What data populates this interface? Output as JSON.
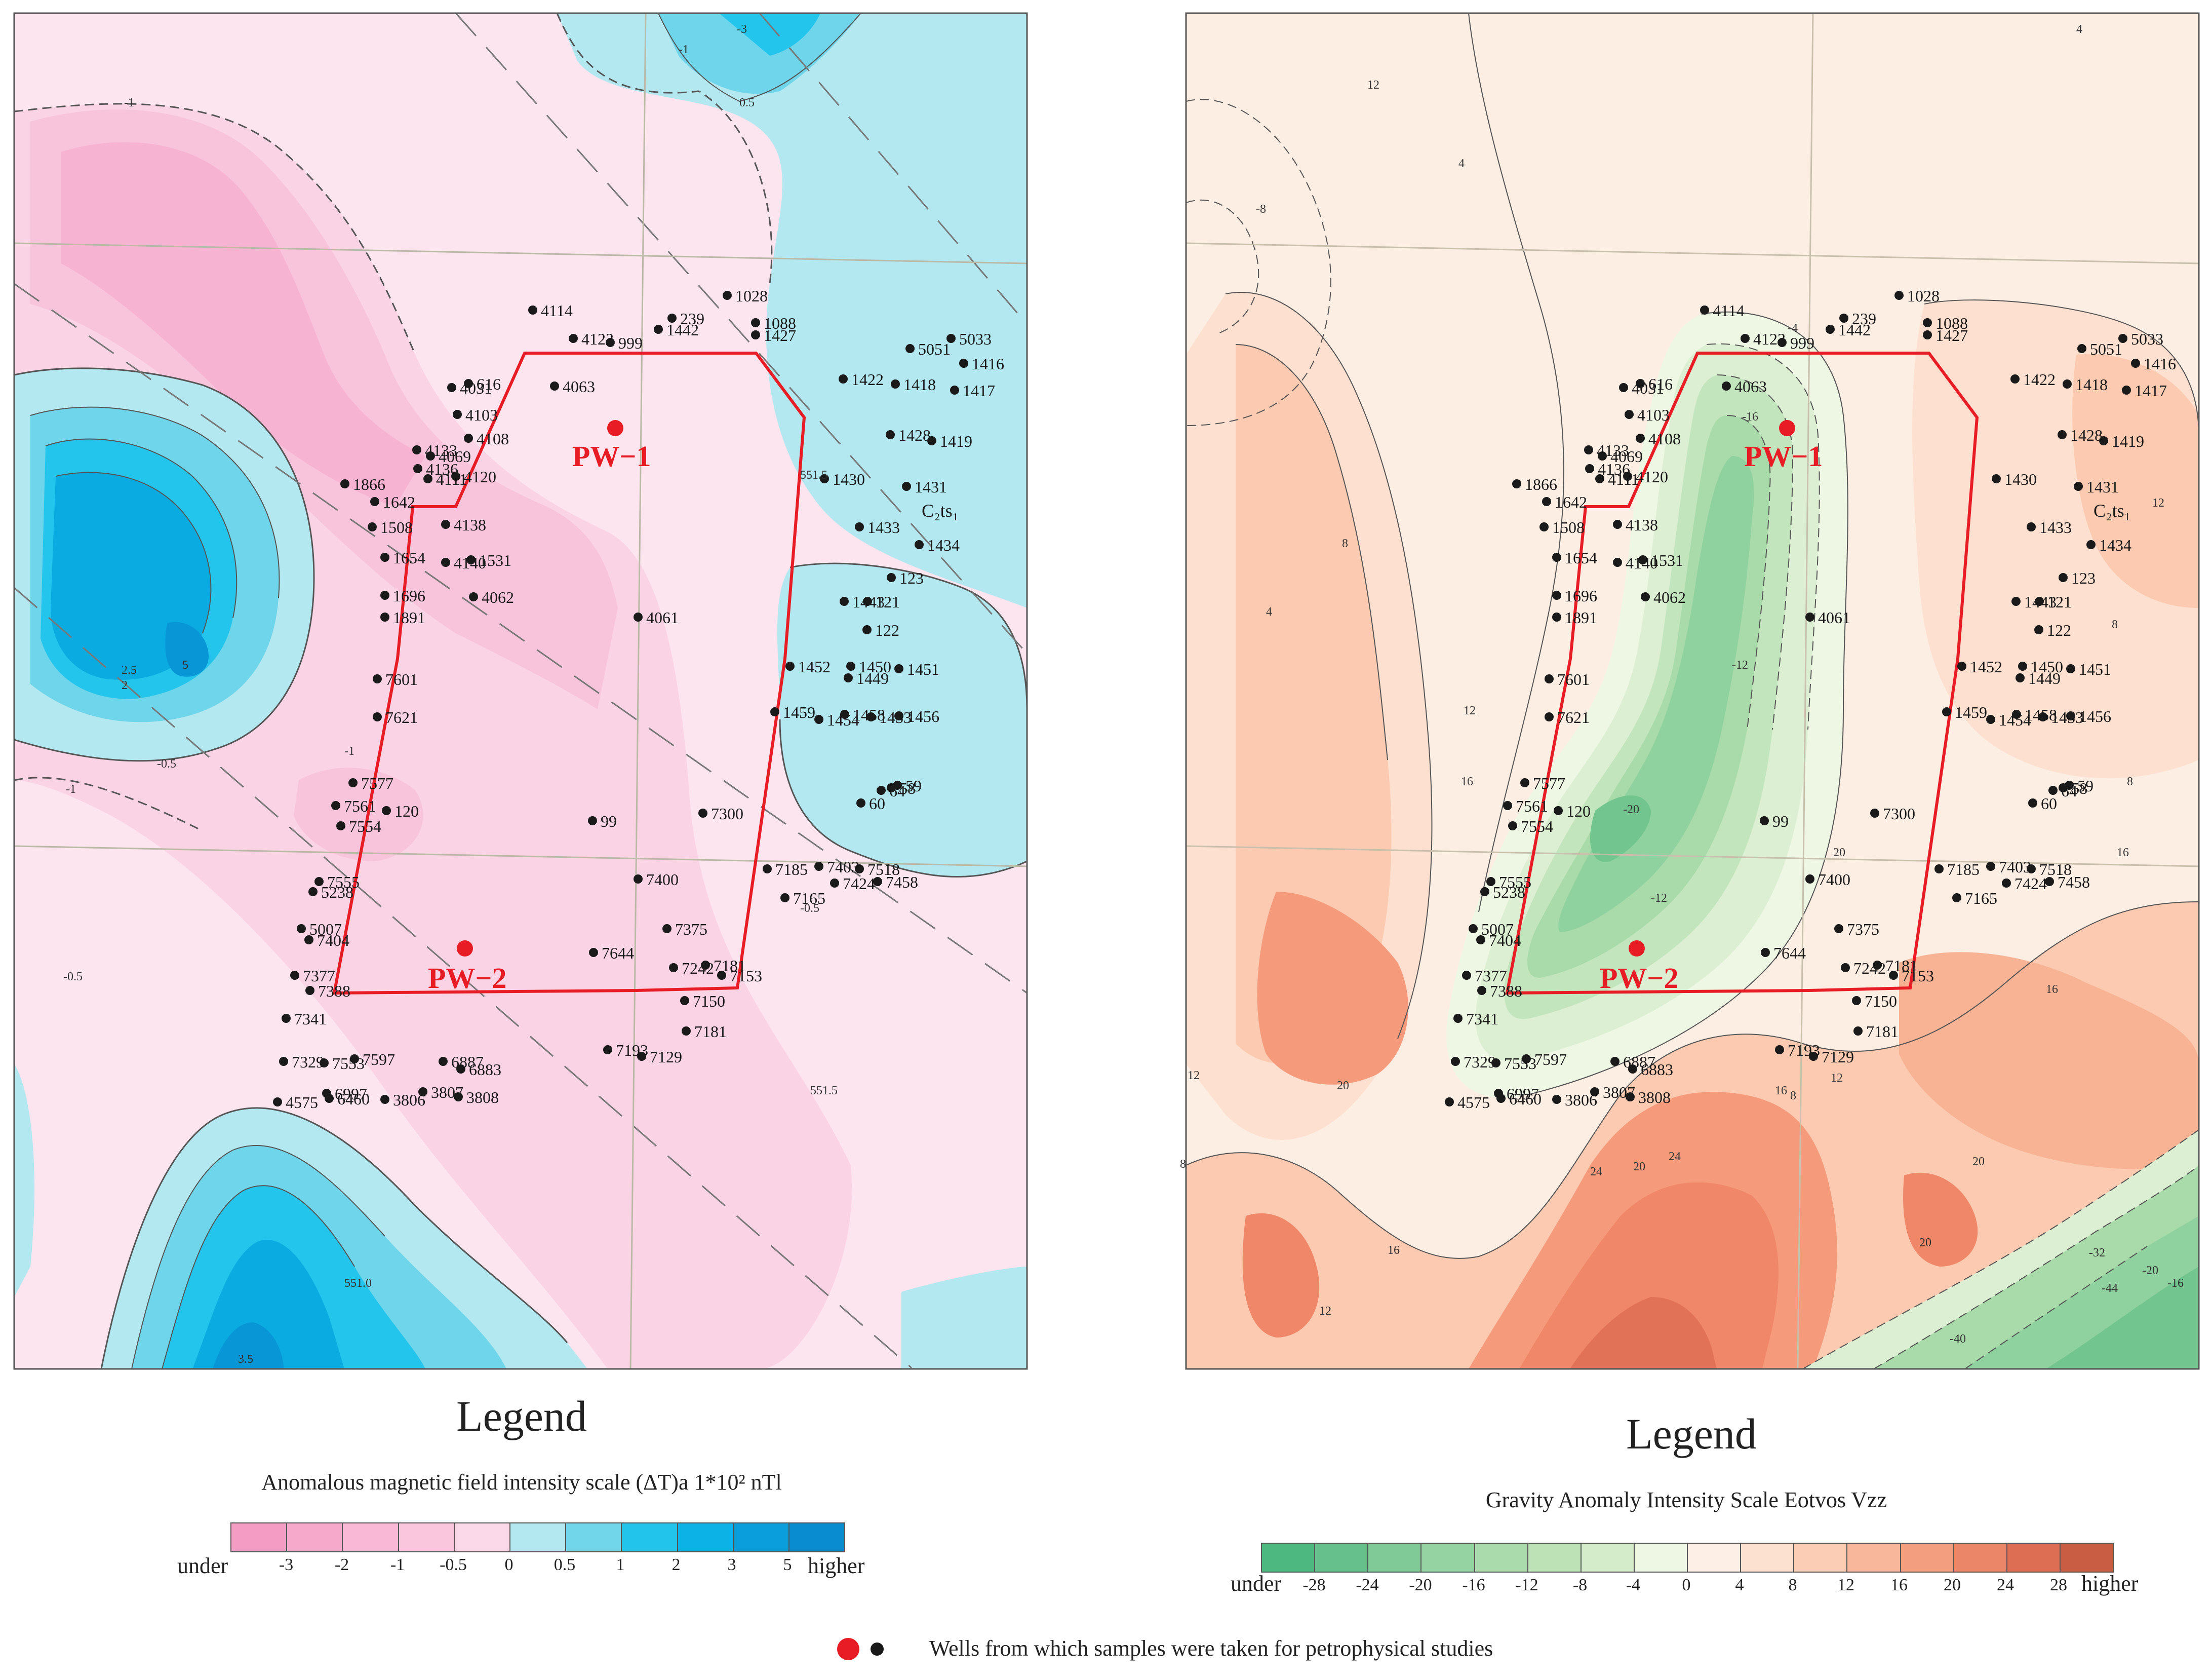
{
  "left_map": {
    "palette": [
      "#f5a3c8",
      "#f7b3d2",
      "#f8c4dc",
      "#fad3e5",
      "#fde5ef",
      "#b3e8f0",
      "#6fd5ea",
      "#24c5ec",
      "#0aabe0",
      "#0896d6",
      "#0a7fc4"
    ],
    "contour_labels": [
      "-3",
      "-1",
      "0.5",
      "-0.5",
      "-1",
      "-1",
      "-0.5",
      "-0.5",
      "551.5",
      "551.0",
      "551.5",
      "5",
      "2.5",
      "2",
      "-1",
      "3.5"
    ],
    "wells_black": [
      "4114",
      "4123",
      "999",
      "239",
      "1442",
      "1028",
      "1088",
      "1427",
      "4031",
      "616",
      "4063",
      "4103",
      "4108",
      "4133",
      "4069",
      "4136",
      "4120",
      "4111",
      "1866",
      "1642",
      "1508",
      "4138",
      "1654",
      "1531",
      "4140",
      "1696",
      "1891",
      "4062",
      "4061",
      "7601",
      "7621",
      "7577",
      "7561",
      "120",
      "7554",
      "7555",
      "5238",
      "5007",
      "7404",
      "7377",
      "7388",
      "7341",
      "7329",
      "7553",
      "7597",
      "6887",
      "6883",
      "6997",
      "6460",
      "3807",
      "3806",
      "3808",
      "4575",
      "99",
      "7300",
      "7400",
      "7375",
      "7644",
      "7242",
      "7181",
      "7153",
      "7150",
      "7181",
      "7129",
      "7193",
      "7185",
      "7403",
      "7518",
      "7424",
      "7458",
      "7165",
      "1422",
      "5051",
      "5033",
      "1416",
      "1418",
      "1417",
      "1428",
      "1419",
      "1430",
      "1431",
      "1433",
      "1434",
      "123",
      "1443",
      "121",
      "122",
      "1452",
      "1450",
      "1451",
      "1449",
      "1459",
      "1458",
      "1456",
      "1454",
      "1453",
      "64",
      "58",
      "59",
      "60"
    ],
    "wells_red": [
      "PW−1",
      "PW−2"
    ],
    "formation_label": "C₂ts₁"
  },
  "right_map": {
    "palette": [
      "#4db880",
      "#72c58f",
      "#8fd19f",
      "#a8dba9",
      "#c3e5bd",
      "#dcefd3",
      "#eef6e4",
      "#fdeee4",
      "#fde0cf",
      "#fbcab0",
      "#f8b294",
      "#f59b7c",
      "#ef8768",
      "#e27257",
      "#cf5f45"
    ],
    "contour_labels": [
      "12",
      "4",
      "8",
      "4",
      "-4",
      "-8",
      "4",
      "8",
      "12",
      "16",
      "20",
      "16",
      "12",
      "8",
      "-16",
      "-20",
      "-12",
      "-12",
      "16",
      "20",
      "24",
      "20",
      "12",
      "16",
      "20",
      "8",
      "12",
      "16",
      "20",
      "-32",
      "-44",
      "-40",
      "-20",
      "-16",
      "24",
      "12",
      "8"
    ],
    "wells_black": [
      "4114",
      "4123",
      "999",
      "239",
      "1442",
      "1028",
      "1088",
      "1427",
      "4031",
      "616",
      "4063",
      "4103",
      "4108",
      "4133",
      "4069",
      "4136",
      "4120",
      "4111",
      "1866",
      "1642",
      "1508",
      "4138",
      "1654",
      "1531",
      "4140",
      "1696",
      "1891",
      "4062",
      "4061",
      "7601",
      "7621",
      "7577",
      "7561",
      "120",
      "7554",
      "7555",
      "5238",
      "5007",
      "7404",
      "7377",
      "7388",
      "7341",
      "7329",
      "7553",
      "7597",
      "6887",
      "6883",
      "6997",
      "6460",
      "3807",
      "3806",
      "3808",
      "4575",
      "99",
      "7300",
      "7400",
      "7375",
      "7644",
      "7242",
      "7181",
      "7153",
      "7150",
      "7181",
      "7129",
      "7193",
      "7185",
      "7403",
      "7518",
      "7424",
      "7458",
      "7165",
      "1422",
      "5051",
      "5033",
      "1416",
      "1418",
      "1417",
      "1428",
      "1419",
      "1430",
      "1431",
      "1433",
      "1434",
      "123",
      "1443",
      "121",
      "122",
      "1452",
      "1450",
      "1451",
      "1449",
      "1459",
      "1458",
      "1456",
      "1454",
      "1453",
      "64",
      "58",
      "59",
      "60"
    ],
    "wells_red": [
      "PW−1",
      "PW−2"
    ],
    "formation_label": "C₂ts₁"
  },
  "legend_left": {
    "title": "Legend",
    "subtitle": "Anomalous magnetic field intensity scale (ΔT)a 1*10² nTl",
    "under_label": "under",
    "higher_label": "higher",
    "ticks": [
      "-3",
      "-2",
      "-1",
      "-0.5",
      "0",
      "0.5",
      "1",
      "2",
      "3",
      "5"
    ],
    "colors": [
      "#f59cc4",
      "#f7a9cc",
      "#f8b8d6",
      "#f9c6de",
      "#fcd9e8",
      "#b3e8f0",
      "#72d6ea",
      "#22c4ec",
      "#0cb2e6",
      "#0a9fdc",
      "#0a8dd0"
    ]
  },
  "legend_right": {
    "title": "Legend",
    "subtitle": "Gravity Anomaly Intensity Scale Eotvos Vzz",
    "under_label": "under",
    "higher_label": "higher",
    "ticks": [
      "-28",
      "-24",
      "-20",
      "-16",
      "-12",
      "-8",
      "-4",
      "0",
      "4",
      "8",
      "12",
      "16",
      "20",
      "24",
      "28"
    ],
    "colors": [
      "#4db880",
      "#66c08b",
      "#80ca97",
      "#96d3a3",
      "#a9dbad",
      "#bde2b6",
      "#d4ecca",
      "#eef6e4",
      "#fdefe5",
      "#fde1d0",
      "#fbcdb4",
      "#f8b79a",
      "#f49e80",
      "#ec8669",
      "#dd6e53",
      "#c95d43"
    ]
  },
  "well_legend": {
    "text": "Wells from which samples were taken for petrophysical studies",
    "red_color": "#e81c24",
    "black_color": "#1a1a1a"
  }
}
